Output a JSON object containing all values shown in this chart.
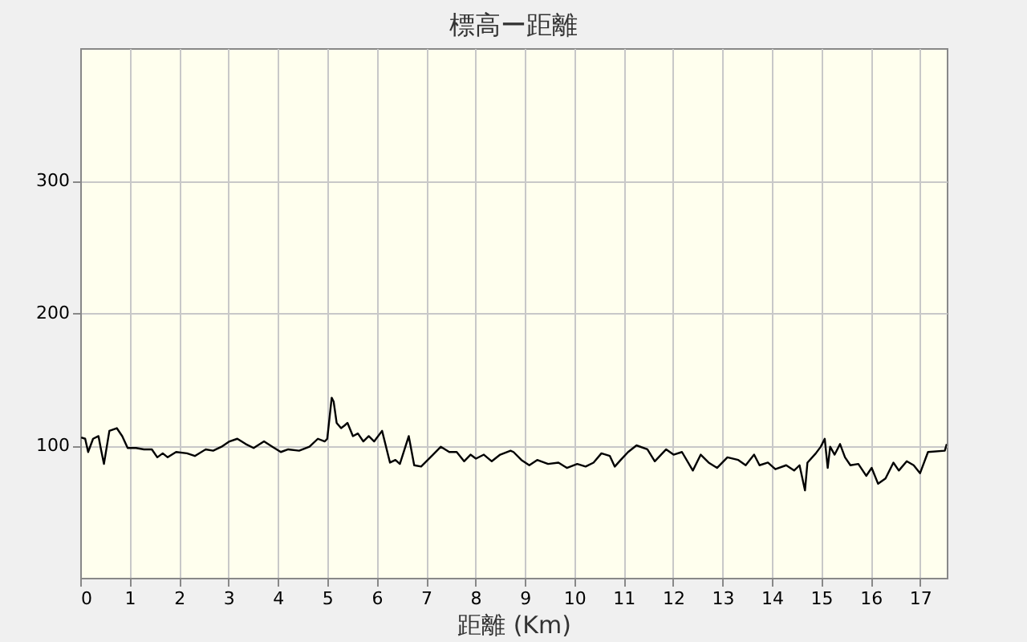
{
  "chart_data": {
    "type": "line",
    "title": "標高ー距離",
    "xlabel": "距離 (Km)",
    "x": [
      0.02,
      0.1,
      0.16,
      0.26,
      0.37,
      0.42,
      0.48,
      0.59,
      0.74,
      0.85,
      0.96,
      1.13,
      1.29,
      1.45,
      1.56,
      1.67,
      1.77,
      1.94,
      2.16,
      2.32,
      2.54,
      2.69,
      2.86,
      3.02,
      3.18,
      3.35,
      3.51,
      3.72,
      3.89,
      4.06,
      4.21,
      4.43,
      4.64,
      4.81,
      4.95,
      5.0,
      5.09,
      5.13,
      5.19,
      5.28,
      5.35,
      5.41,
      5.52,
      5.62,
      5.73,
      5.84,
      5.95,
      6.11,
      6.27,
      6.38,
      6.47,
      6.65,
      6.76,
      6.9,
      7.14,
      7.3,
      7.47,
      7.62,
      7.77,
      7.9,
      8.01,
      8.17,
      8.33,
      8.5,
      8.71,
      8.77,
      8.93,
      9.09,
      9.25,
      9.47,
      9.68,
      9.85,
      10.06,
      10.23,
      10.39,
      10.55,
      10.72,
      10.82,
      10.94,
      11.09,
      11.26,
      11.48,
      11.63,
      11.86,
      12.01,
      12.18,
      12.4,
      12.56,
      12.72,
      12.89,
      13.1,
      13.32,
      13.47,
      13.64,
      13.75,
      13.92,
      14.07,
      14.29,
      14.45,
      14.56,
      14.67,
      14.72,
      14.89,
      14.99,
      15.07,
      15.13,
      15.18,
      15.27,
      15.38,
      15.48,
      15.59,
      15.75,
      15.91,
      16.02,
      16.15,
      16.3,
      16.46,
      16.57,
      16.73,
      16.87,
      17.0,
      17.16,
      17.5,
      17.54
    ],
    "series": [
      {
        "color": "#000000",
        "values": [
          106,
          105,
          95,
          105,
          107,
          97,
          86,
          111,
          113,
          107,
          98,
          98,
          97,
          97,
          91,
          94,
          91,
          95,
          94,
          92,
          97,
          96,
          99,
          103,
          105,
          101,
          98,
          103,
          99,
          95,
          97,
          96,
          99,
          105,
          103,
          105,
          136,
          133,
          117,
          113,
          115,
          117,
          107,
          109,
          103,
          107,
          103,
          111,
          87,
          89,
          86,
          107,
          85,
          84,
          93,
          99,
          95,
          95,
          88,
          93,
          90,
          93,
          88,
          93,
          96,
          95,
          89,
          85,
          89,
          86,
          87,
          83,
          86,
          84,
          87,
          94,
          92,
          84,
          89,
          95,
          100,
          97,
          88,
          97,
          93,
          95,
          81,
          93,
          87,
          83,
          91,
          89,
          85,
          93,
          85,
          87,
          82,
          85,
          81,
          85,
          66,
          87,
          94,
          99,
          105,
          83,
          99,
          93,
          101,
          91,
          85,
          86,
          77,
          83,
          71,
          75,
          87,
          81,
          88,
          85,
          79,
          95,
          96,
          101
        ]
      }
    ],
    "xlim": [
      0,
      17.54
    ],
    "xticks": [
      0,
      1,
      2,
      3,
      4,
      5,
      6,
      7,
      8,
      9,
      10,
      11,
      12,
      13,
      14,
      15,
      16,
      17
    ],
    "ylim": [
      0,
      400
    ],
    "yticks": [
      100,
      200,
      300
    ],
    "grid": true,
    "marker": "none",
    "line_style": "solid"
  }
}
